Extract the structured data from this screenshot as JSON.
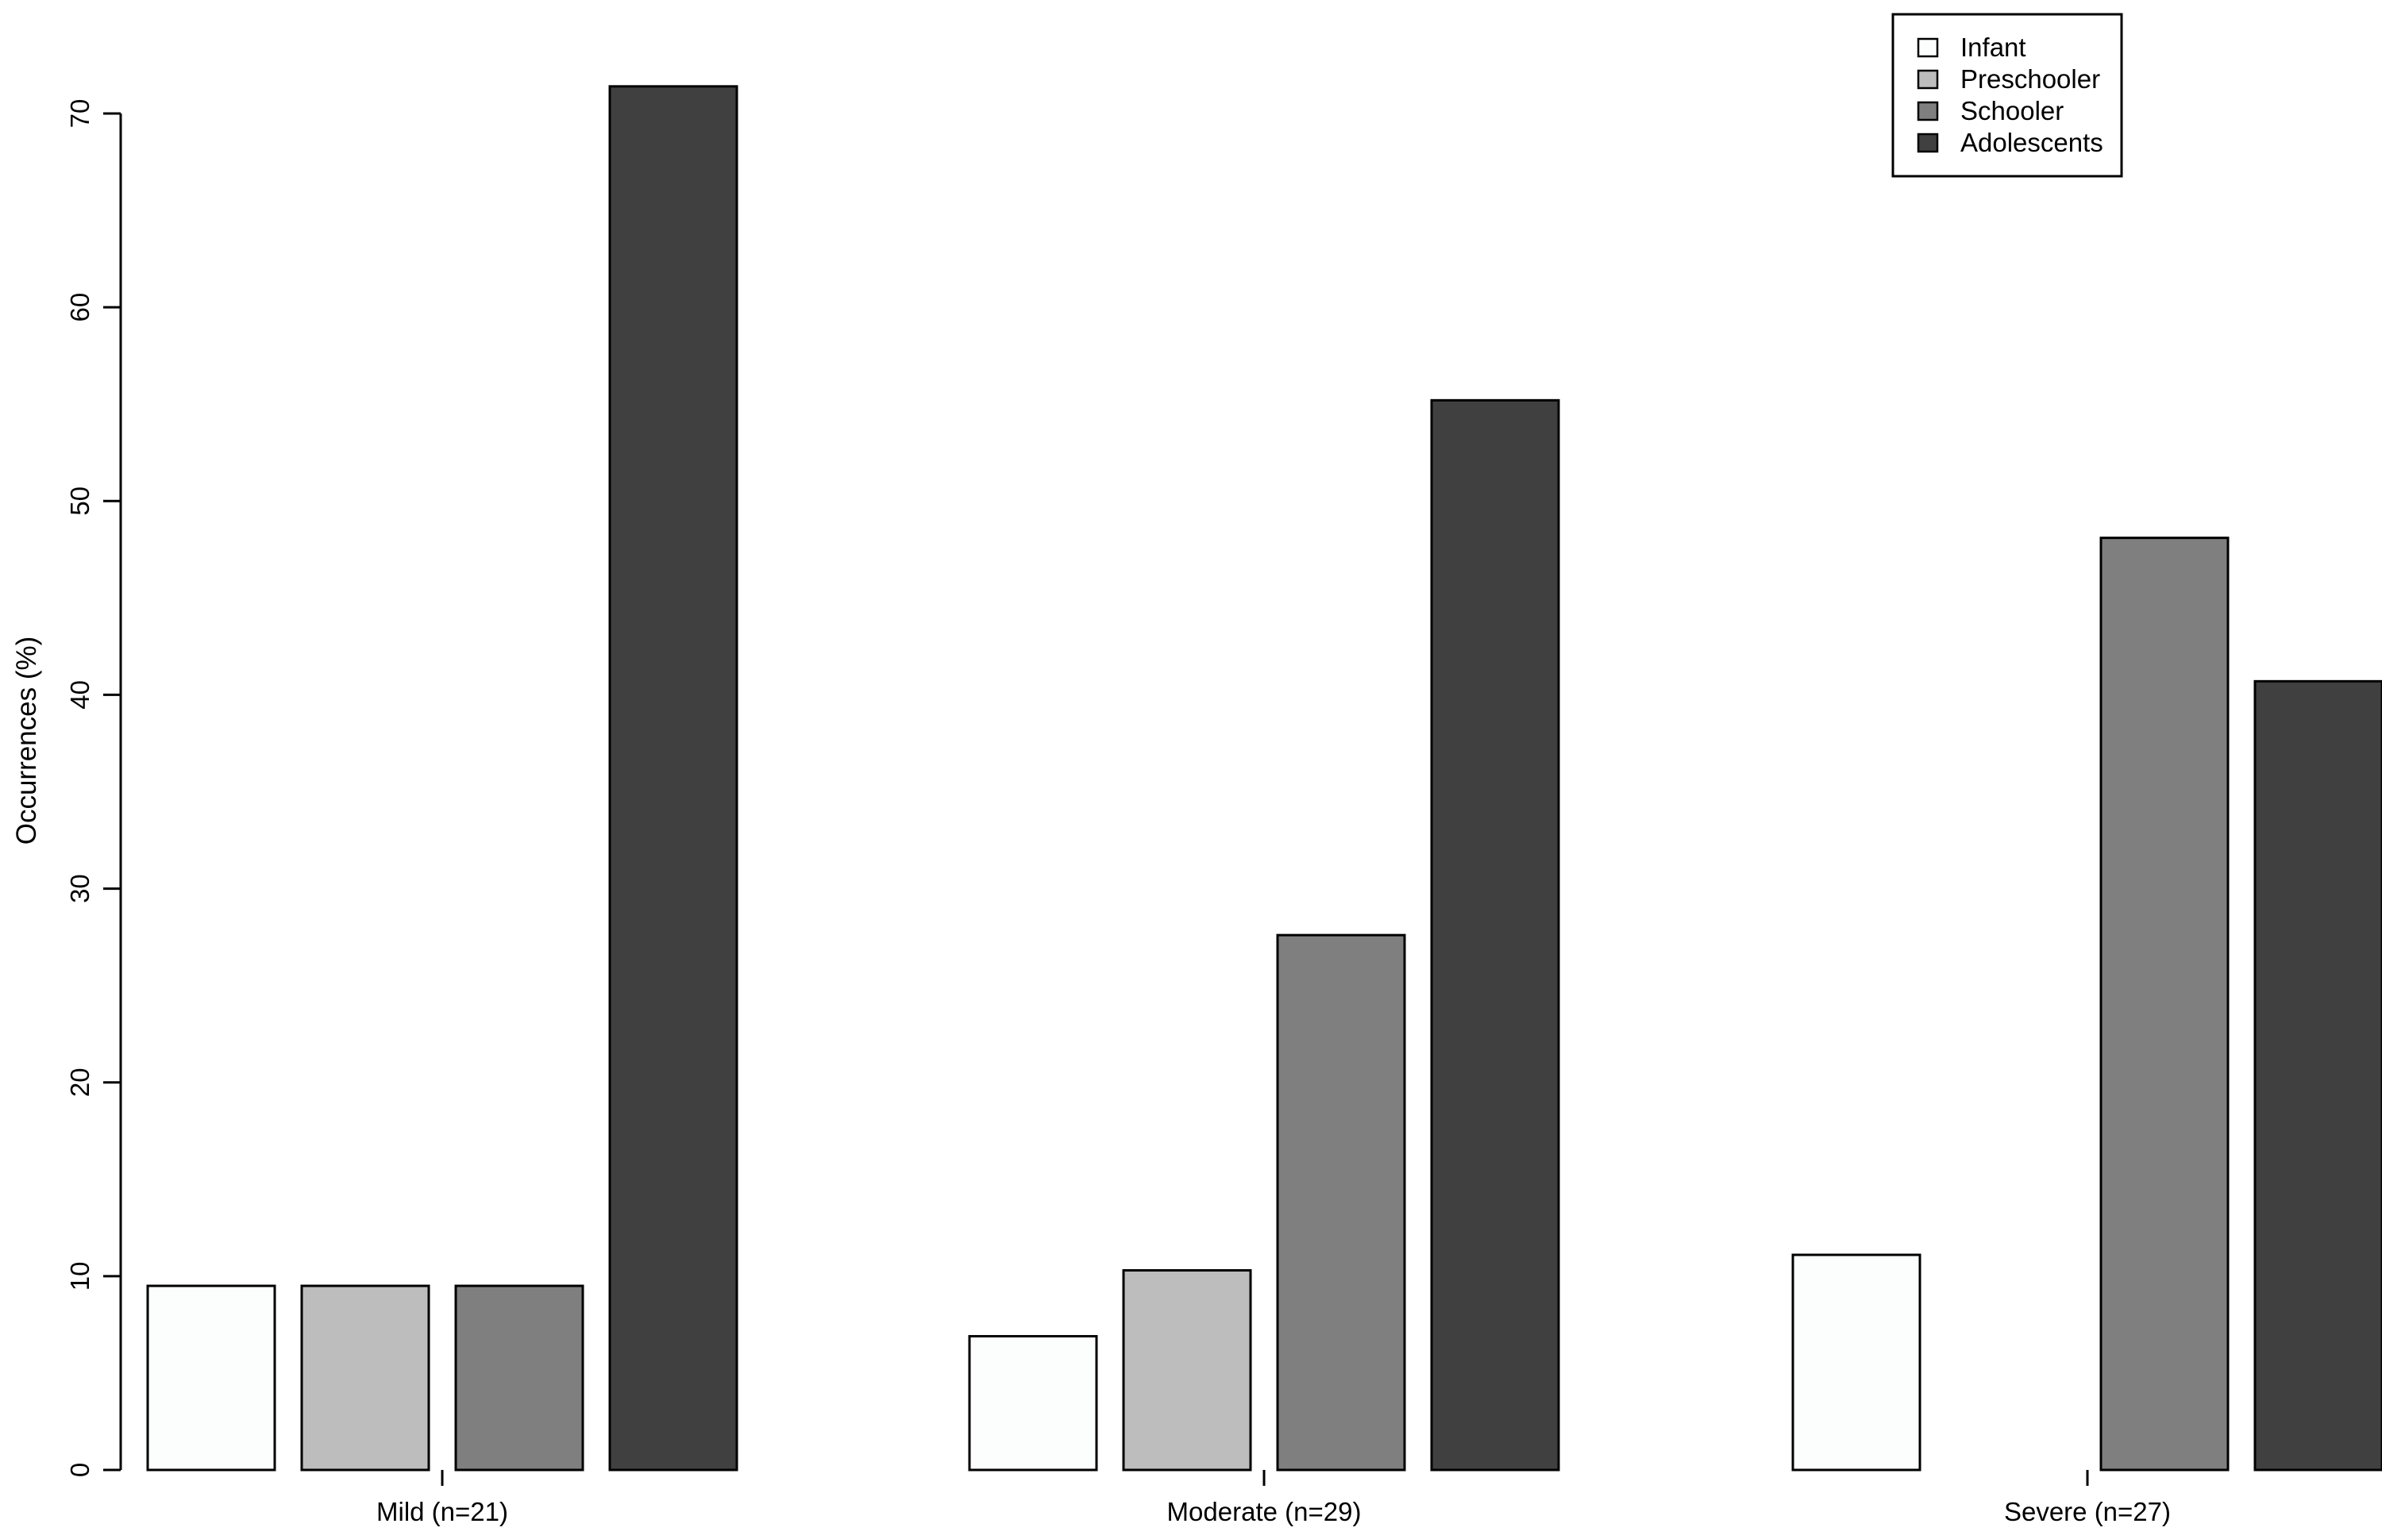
{
  "chart_data": {
    "type": "bar",
    "title": "",
    "xlabel": "",
    "ylabel": "Occurrences (%)",
    "ylim": [
      0,
      70
    ],
    "yticks": [
      "0",
      "10",
      "20",
      "30",
      "40",
      "50",
      "60",
      "70"
    ],
    "grid": false,
    "legend_position": "top-right",
    "categories": [
      "Mild (n=21)",
      "Moderate (n=29)",
      "Severe (n=27)"
    ],
    "series": [
      {
        "name": "Infant",
        "color": "#fcfdfd",
        "values": [
          9.5,
          6.9,
          11.1
        ]
      },
      {
        "name": "Preschooler",
        "color": "#bdbdbd",
        "values": [
          9.5,
          10.3,
          0
        ]
      },
      {
        "name": "Schooler",
        "color": "#7f7f7f",
        "values": [
          9.5,
          27.6,
          48.1
        ]
      },
      {
        "name": "Adolescents",
        "color": "#404040",
        "values": [
          71.4,
          55.2,
          40.7
        ]
      }
    ]
  }
}
